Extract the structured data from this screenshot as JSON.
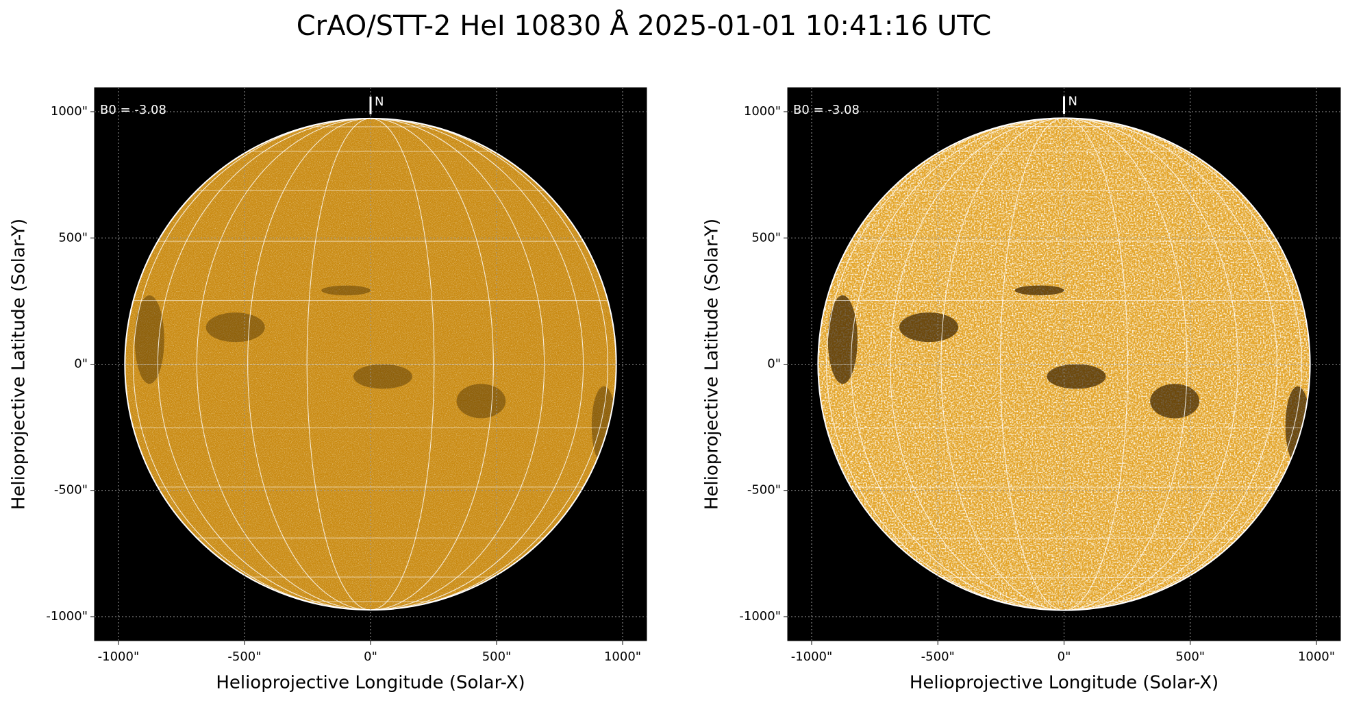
{
  "title": "CrAO/STT-2 HeI 10830 Å 2025-01-01 10:41:16 UTC",
  "chart_data": [
    {
      "type": "image",
      "annotation": "B0 = -3.08",
      "north_label": "N",
      "xlabel": "Helioprojective Longitude (Solar-X)",
      "ylabel": "Helioprojective Latitude (Solar-Y)",
      "xlim": [
        -1095,
        1095
      ],
      "ylim": [
        -1095,
        1095
      ],
      "xticks": [
        {
          "value": -1000,
          "label": "-1000\""
        },
        {
          "value": -500,
          "label": "-500\""
        },
        {
          "value": 0,
          "label": "0\""
        },
        {
          "value": 500,
          "label": "500\""
        },
        {
          "value": 1000,
          "label": "1000\""
        }
      ],
      "yticks": [
        {
          "value": -1000,
          "label": "-1000\""
        },
        {
          "value": -500,
          "label": "-500\""
        },
        {
          "value": 0,
          "label": "0\""
        },
        {
          "value": 500,
          "label": "500\""
        },
        {
          "value": 1000,
          "label": "1000\""
        }
      ],
      "grid": true,
      "color": "#c98a12"
    },
    {
      "type": "image",
      "annotation": "B0 = -3.08",
      "north_label": "N",
      "xlabel": "Helioprojective Longitude (Solar-X)",
      "ylabel": "Helioprojective Latitude (Solar-Y)",
      "xlim": [
        -1095,
        1095
      ],
      "ylim": [
        -1095,
        1095
      ],
      "xticks": [
        {
          "value": -1000,
          "label": "-1000\""
        },
        {
          "value": -500,
          "label": "-500\""
        },
        {
          "value": 0,
          "label": "0\""
        },
        {
          "value": 500,
          "label": "500\""
        },
        {
          "value": 1000,
          "label": "1000\""
        }
      ],
      "yticks": [
        {
          "value": -1000,
          "label": "-1000\""
        },
        {
          "value": -500,
          "label": "-500\""
        },
        {
          "value": 0,
          "label": "0\""
        },
        {
          "value": 500,
          "label": "500\""
        },
        {
          "value": 1000,
          "label": "1000\""
        }
      ],
      "grid": true,
      "color": "#e3a326"
    }
  ]
}
